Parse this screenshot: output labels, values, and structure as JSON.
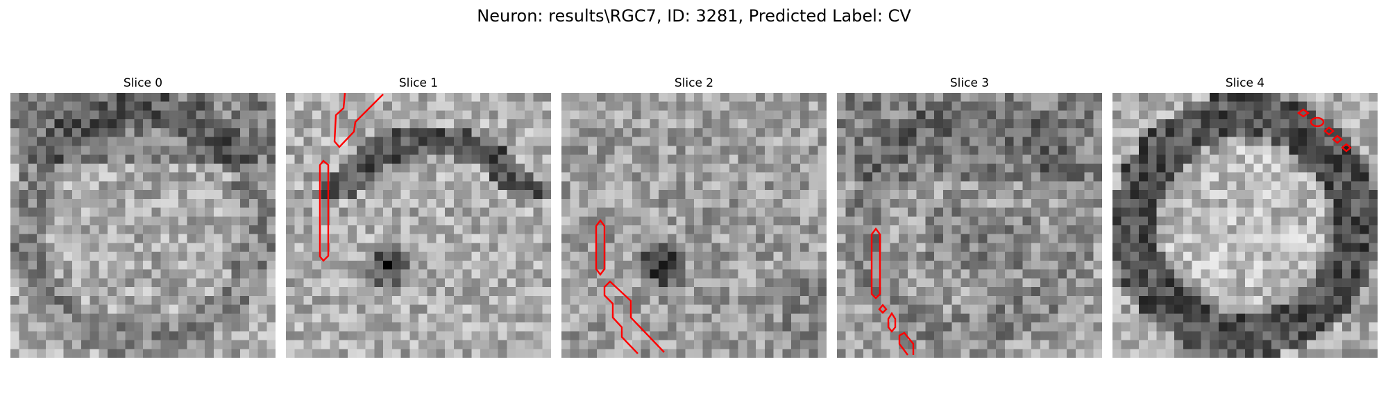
{
  "figure": {
    "title": "Neuron: results\\RGC7, ID: 3281, Predicted Label: CV"
  },
  "slices": [
    {
      "title": "Slice 0",
      "contour_color": "#ff0000"
    },
    {
      "title": "Slice 1",
      "contour_color": "#ff0000"
    },
    {
      "title": "Slice 2",
      "contour_color": "#ff0000"
    },
    {
      "title": "Slice 3",
      "contour_color": "#ff0000"
    },
    {
      "title": "Slice 4",
      "contour_color": "#ff0000"
    }
  ],
  "colormap": "gray"
}
